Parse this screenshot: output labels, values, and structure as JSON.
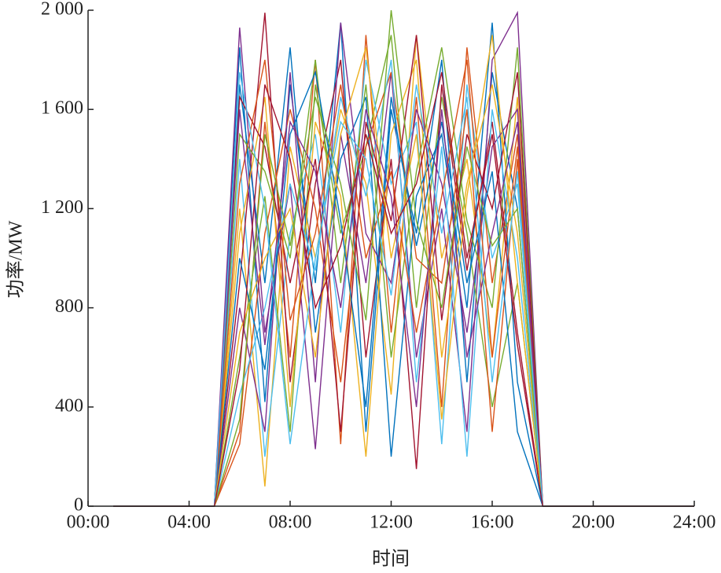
{
  "chart_data": {
    "type": "line",
    "x_label": "时间",
    "y_label": "功率/MW",
    "x": [
      1,
      2,
      3,
      4,
      5,
      6,
      7,
      8,
      9,
      10,
      11,
      12,
      13,
      14,
      15,
      16,
      17,
      18,
      19,
      20,
      21,
      22,
      23,
      24
    ],
    "xlim": [
      0,
      24
    ],
    "xticks": [
      {
        "value": 0,
        "label": "00:00"
      },
      {
        "value": 4,
        "label": "04:00"
      },
      {
        "value": 8,
        "label": "08:00"
      },
      {
        "value": 12,
        "label": "12:00"
      },
      {
        "value": 16,
        "label": "16:00"
      },
      {
        "value": 20,
        "label": "20:00"
      },
      {
        "value": 24,
        "label": "24:00"
      }
    ],
    "ylim": [
      0,
      2000
    ],
    "yticks": [
      0,
      400,
      800,
      {
        "value": 1200,
        "label": "1 200"
      },
      {
        "value": 1600,
        "label": "1 600"
      },
      {
        "value": 2000,
        "label": "2 000"
      }
    ],
    "series": [
      {
        "color": "#0072BD",
        "values": [
          0,
          0,
          0,
          0,
          0,
          1850,
          420,
          1700,
          900,
          1950,
          300,
          1600,
          1100,
          1800,
          500,
          1750,
          1200,
          0,
          0,
          0,
          0,
          0,
          0,
          0
        ]
      },
      {
        "color": "#D95319",
        "values": [
          0,
          0,
          0,
          0,
          0,
          300,
          1550,
          600,
          1800,
          250,
          1900,
          700,
          1650,
          400,
          1850,
          900,
          1500,
          0,
          0,
          0,
          0,
          0,
          0,
          0
        ]
      },
      {
        "color": "#EDB120",
        "values": [
          0,
          0,
          0,
          0,
          0,
          1200,
          80,
          1450,
          1000,
          1600,
          1300,
          450,
          1900,
          1000,
          1400,
          600,
          1650,
          0,
          0,
          0,
          0,
          0,
          0,
          0
        ]
      },
      {
        "color": "#7E2F8E",
        "values": [
          0,
          0,
          0,
          0,
          0,
          1930,
          700,
          1300,
          230,
          1500,
          900,
          1750,
          600,
          1200,
          300,
          1800,
          1990,
          0,
          0,
          0,
          0,
          0,
          0,
          0
        ]
      },
      {
        "color": "#77AC30",
        "values": [
          0,
          0,
          0,
          0,
          0,
          600,
          1250,
          300,
          1700,
          1100,
          1450,
          1900,
          800,
          1650,
          1100,
          400,
          900,
          0,
          0,
          0,
          0,
          0,
          0,
          0
        ]
      },
      {
        "color": "#4DBEEE",
        "values": [
          0,
          0,
          0,
          0,
          0,
          1400,
          200,
          1100,
          1500,
          700,
          1800,
          1300,
          1550,
          250,
          1700,
          1000,
          1300,
          0,
          0,
          0,
          0,
          0,
          0,
          0
        ]
      },
      {
        "color": "#A2142F",
        "values": [
          0,
          0,
          0,
          0,
          0,
          900,
          1990,
          500,
          1300,
          1800,
          600,
          1400,
          150,
          1700,
          950,
          1550,
          700,
          0,
          0,
          0,
          0,
          0,
          0,
          0
        ]
      },
      {
        "color": "#0072BD",
        "values": [
          0,
          0,
          0,
          0,
          0,
          1700,
          900,
          1850,
          700,
          1400,
          1650,
          200,
          1250,
          1500,
          800,
          1950,
          500,
          0,
          0,
          0,
          0,
          0,
          0,
          0
        ]
      },
      {
        "color": "#D95319",
        "values": [
          0,
          0,
          0,
          0,
          0,
          250,
          1100,
          1600,
          1200,
          500,
          1450,
          1750,
          1000,
          900,
          1600,
          300,
          1400,
          0,
          0,
          0,
          0,
          0,
          0,
          0
        ]
      },
      {
        "color": "#EDB120",
        "values": [
          0,
          0,
          0,
          0,
          0,
          1100,
          1650,
          400,
          1550,
          1250,
          200,
          1500,
          1800,
          600,
          1300,
          1700,
          1100,
          0,
          0,
          0,
          0,
          0,
          0,
          0
        ]
      },
      {
        "color": "#7E2F8E",
        "values": [
          0,
          0,
          0,
          0,
          0,
          800,
          300,
          1750,
          500,
          1950,
          1100,
          900,
          1600,
          1300,
          700,
          1450,
          1600,
          0,
          0,
          0,
          0,
          0,
          0,
          0
        ]
      },
      {
        "color": "#77AC30",
        "values": [
          0,
          0,
          0,
          0,
          0,
          1500,
          1350,
          1000,
          1800,
          900,
          1700,
          600,
          1350,
          1850,
          1150,
          800,
          1850,
          0,
          0,
          0,
          0,
          0,
          0,
          0
        ]
      },
      {
        "color": "#4DBEEE",
        "values": [
          0,
          0,
          0,
          0,
          0,
          450,
          800,
          1300,
          950,
          1650,
          1250,
          1800,
          500,
          1450,
          200,
          1600,
          1000,
          0,
          0,
          0,
          0,
          0,
          0,
          0
        ]
      },
      {
        "color": "#A2142F",
        "values": [
          0,
          0,
          0,
          0,
          0,
          1650,
          1450,
          900,
          1400,
          300,
          1550,
          1150,
          1900,
          750,
          1500,
          1200,
          1750,
          0,
          0,
          0,
          0,
          0,
          0,
          0
        ]
      },
      {
        "color": "#0072BD",
        "values": [
          0,
          0,
          0,
          0,
          0,
          1000,
          550,
          1500,
          1750,
          1150,
          400,
          1650,
          1050,
          1550,
          900,
          1350,
          300,
          0,
          0,
          0,
          0,
          0,
          0,
          0
        ]
      },
      {
        "color": "#D95319",
        "values": [
          0,
          0,
          0,
          0,
          0,
          1300,
          1800,
          750,
          1100,
          1700,
          1000,
          1350,
          700,
          1250,
          1800,
          600,
          1450,
          0,
          0,
          0,
          0,
          0,
          0,
          0
        ]
      },
      {
        "color": "#EDB120",
        "values": [
          0,
          0,
          0,
          0,
          0,
          700,
          1000,
          1200,
          600,
          1500,
          1850,
          1000,
          1500,
          350,
          1250,
          1900,
          900,
          0,
          0,
          0,
          0,
          0,
          0,
          0
        ]
      },
      {
        "color": "#7E2F8E",
        "values": [
          0,
          0,
          0,
          0,
          0,
          1600,
          650,
          1550,
          1350,
          800,
          1600,
          1250,
          400,
          1600,
          600,
          1100,
          1550,
          0,
          0,
          0,
          0,
          0,
          0,
          0
        ]
      },
      {
        "color": "#77AC30",
        "values": [
          0,
          0,
          0,
          0,
          0,
          350,
          1500,
          1050,
          1650,
          1300,
          750,
          2000,
          1150,
          800,
          1450,
          1050,
          1200,
          0,
          0,
          0,
          0,
          0,
          0,
          0
        ]
      },
      {
        "color": "#4DBEEE",
        "values": [
          0,
          0,
          0,
          0,
          0,
          1750,
          1200,
          250,
          1000,
          1550,
          1400,
          850,
          1700,
          1100,
          1650,
          500,
          1350,
          0,
          0,
          0,
          0,
          0,
          0,
          0
        ]
      },
      {
        "color": "#A2142F",
        "values": [
          0,
          0,
          0,
          0,
          0,
          550,
          1700,
          1400,
          800,
          1050,
          1500,
          1100,
          1300,
          1750,
          1000,
          1500,
          650,
          0,
          0,
          0,
          0,
          0,
          0,
          0
        ]
      }
    ]
  }
}
